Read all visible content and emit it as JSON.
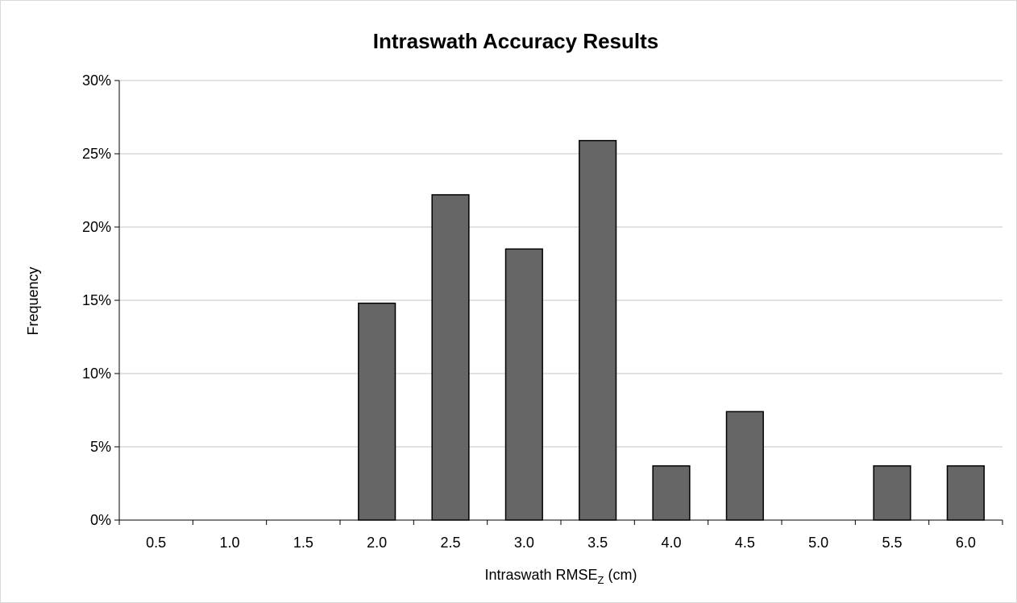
{
  "chart_data": {
    "type": "bar",
    "title": "Intraswath Accuracy Results",
    "xlabel": {
      "main": "Intraswath RMSE",
      "subscript": "Z",
      "suffix": " (cm)"
    },
    "ylabel": "Frequency",
    "categories": [
      "0.5",
      "1.0",
      "1.5",
      "2.0",
      "2.5",
      "3.0",
      "3.5",
      "4.0",
      "4.5",
      "5.0",
      "5.5",
      "6.0"
    ],
    "values": [
      0,
      0,
      0,
      0.148,
      0.222,
      0.185,
      0.259,
      0.037,
      0.074,
      0,
      0.037,
      0.037
    ],
    "ylim": [
      0,
      0.3
    ],
    "yticks": [
      0,
      0.05,
      0.1,
      0.15,
      0.2,
      0.25,
      0.3
    ],
    "ytick_labels": [
      "0%",
      "5%",
      "10%",
      "15%",
      "20%",
      "25%",
      "30%"
    ],
    "grid": true,
    "legend": "none",
    "colors": {
      "bar_fill": "#666666",
      "bar_stroke": "#000000",
      "grid": "#d9d9d9",
      "axis": "#000000"
    }
  }
}
